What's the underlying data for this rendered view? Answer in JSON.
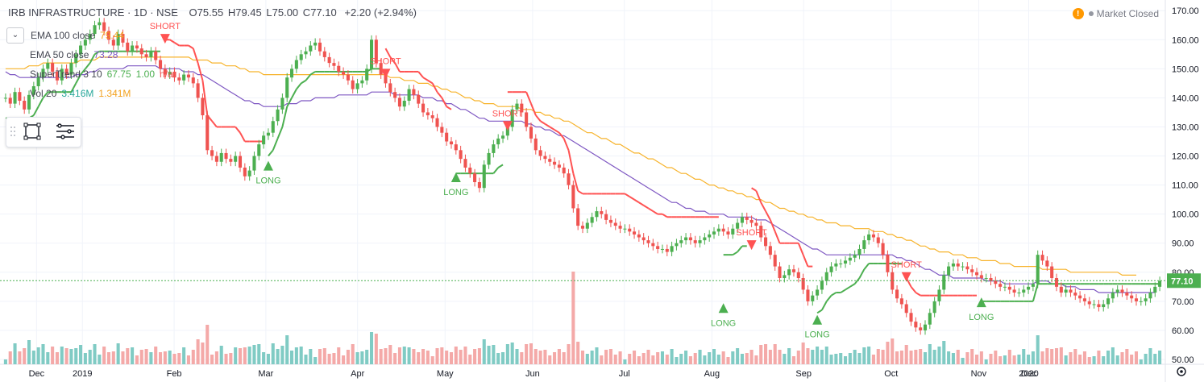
{
  "header": {
    "title": "IRB INFRASTRUCTURE · 1D · NSE",
    "open_label": "O",
    "open": "75.55",
    "high_label": "H",
    "high": "79.45",
    "low_label": "L",
    "low": "75.00",
    "close_label": "C",
    "close": "77.10",
    "change": "+2.20 (+2.94%)"
  },
  "status": {
    "warning_icon": "!",
    "text": "Market Closed"
  },
  "indicators": [
    {
      "label": "EMA 100 close",
      "value": "79.44",
      "color": "#f2a01d"
    },
    {
      "label": "EMA 50 close",
      "value": "73.28",
      "color": "#7e57c2"
    },
    {
      "label": "SuperTrend 3 10",
      "value": "67.75",
      "value2": "1.00",
      "value3": "n/a",
      "color": "#4caf50"
    },
    {
      "label": "Vol 20",
      "value": "3.416M",
      "value2": "1.341M",
      "color": "#26a69a"
    }
  ],
  "colors": {
    "up": "#4caf50",
    "down": "#ef5350",
    "ema100": "#f7b32b",
    "ema50": "#7e57c2",
    "st_long": "#4caf50",
    "st_short": "#ff5252",
    "vol_up": "#80cbc4",
    "vol_down": "#f4a9a8",
    "price_tag": "#4caf50"
  },
  "chart_data": {
    "type": "candlestick",
    "title": "IRB INFRASTRUCTURE · 1D · NSE",
    "ylim": [
      50,
      172
    ],
    "y_ticks": [
      "50.00",
      "60.00",
      "70.00",
      "80.00",
      "90.00",
      "100.00",
      "110.00",
      "120.00",
      "130.00",
      "140.00",
      "150.00",
      "160.00",
      "170.00"
    ],
    "x_ticks": [
      "Dec",
      "2019",
      "Feb",
      "Mar",
      "Apr",
      "May",
      "Jun",
      "Jul",
      "Aug",
      "Sep",
      "Oct",
      "Nov",
      "Dec",
      "2020"
    ],
    "last_price": "77.10",
    "closes": [
      140,
      138,
      142,
      139,
      136,
      141,
      144,
      147,
      150,
      152,
      149,
      146,
      150,
      148,
      152,
      155,
      158,
      160,
      162,
      165,
      166,
      163,
      160,
      158,
      162,
      159,
      156,
      158,
      157,
      155,
      154,
      156,
      153,
      150,
      148,
      149,
      147,
      146,
      148,
      147,
      145,
      140,
      134,
      122,
      120,
      118,
      121,
      119,
      118,
      120,
      116,
      113,
      115,
      120,
      124,
      127,
      128,
      132,
      136,
      140,
      147,
      150,
      153,
      155,
      156,
      158,
      159,
      156,
      154,
      152,
      151,
      149,
      148,
      146,
      143,
      145,
      146,
      150,
      160,
      152,
      148,
      145,
      142,
      140,
      137,
      139,
      143,
      141,
      138,
      135,
      134,
      133,
      130,
      128,
      125,
      124,
      122,
      119,
      116,
      114,
      111,
      109,
      117,
      121,
      124,
      126,
      127,
      130,
      136,
      138,
      135,
      130,
      126,
      122,
      120,
      119,
      118,
      117,
      116,
      114,
      110,
      102,
      96,
      95,
      97,
      99,
      101,
      100,
      98,
      97,
      96,
      95,
      95,
      94,
      93,
      92,
      91,
      90,
      89,
      88,
      88,
      87,
      89,
      90,
      91,
      92,
      91,
      90,
      91,
      92,
      93,
      94,
      95,
      94,
      93,
      95,
      97,
      99,
      98,
      97,
      96,
      92,
      89,
      86,
      82,
      78,
      79,
      81,
      80,
      78,
      74,
      70,
      72,
      74,
      77,
      80,
      82,
      83,
      83,
      84,
      85,
      86,
      88,
      91,
      93,
      92,
      90,
      86,
      80,
      74,
      71,
      69,
      66,
      63,
      61,
      60,
      62,
      66,
      70,
      74,
      79,
      82,
      83,
      82,
      82,
      81,
      80,
      79,
      78,
      78,
      77,
      76,
      75,
      75,
      74,
      73,
      73,
      74,
      75,
      76,
      86,
      84,
      82,
      78,
      75,
      73,
      74,
      73,
      72,
      71,
      70,
      69,
      69,
      68,
      69,
      71,
      73,
      74,
      73,
      72,
      71,
      70,
      70,
      71,
      73,
      75,
      77
    ],
    "ema100": [
      150,
      150,
      150,
      150,
      150,
      151,
      151,
      151,
      152,
      152,
      152,
      152,
      152,
      152,
      152,
      152,
      153,
      153,
      153,
      153,
      154,
      154,
      154,
      154,
      154,
      154,
      154,
      154,
      154,
      154,
      154,
      154,
      154,
      154,
      154,
      154,
      154,
      154,
      154,
      154,
      153,
      153,
      153,
      153,
      152,
      152,
      152,
      151,
      151,
      151,
      150,
      150,
      149,
      149,
      149,
      148,
      148,
      148,
      148,
      148,
      148,
      148,
      148,
      148,
      148,
      148,
      148,
      148,
      148,
      148,
      148,
      148,
      148,
      148,
      148,
      148,
      148,
      148,
      148,
      148,
      148,
      148,
      147,
      147,
      147,
      146,
      146,
      146,
      145,
      145,
      145,
      144,
      144,
      143,
      143,
      142,
      142,
      141,
      140,
      140,
      139,
      139,
      138,
      138,
      138,
      137,
      137,
      137,
      137,
      137,
      136,
      136,
      136,
      135,
      135,
      134,
      134,
      133,
      133,
      132,
      132,
      131,
      130,
      129,
      128,
      128,
      127,
      126,
      126,
      125,
      124,
      124,
      123,
      122,
      121,
      121,
      120,
      119,
      119,
      118,
      117,
      116,
      116,
      115,
      114,
      114,
      113,
      112,
      112,
      111,
      110,
      110,
      109,
      109,
      108,
      108,
      107,
      107,
      106,
      106,
      105,
      105,
      104,
      104,
      103,
      102,
      102,
      101,
      101,
      100,
      100,
      99,
      99,
      98,
      98,
      97,
      97,
      97,
      96,
      96,
      96,
      95,
      95,
      95,
      95,
      94,
      94,
      94,
      93,
      93,
      92,
      92,
      91,
      91,
      90,
      89,
      89,
      88,
      88,
      87,
      87,
      87,
      86,
      86,
      86,
      85,
      85,
      85,
      84,
      84,
      84,
      84,
      83,
      83,
      83,
      82,
      82,
      82,
      82,
      82,
      82,
      81,
      81,
      81,
      81,
      81,
      81,
      80,
      80,
      80,
      80,
      80,
      80,
      80,
      80,
      80,
      80,
      80,
      79,
      79,
      79,
      79
    ],
    "ema50": [
      149,
      148,
      148,
      147,
      147,
      147,
      147,
      147,
      147,
      147,
      147,
      147,
      147,
      147,
      147,
      148,
      148,
      148,
      149,
      149,
      150,
      150,
      150,
      150,
      150,
      150,
      151,
      151,
      151,
      151,
      151,
      151,
      151,
      150,
      150,
      150,
      150,
      150,
      149,
      149,
      149,
      148,
      148,
      147,
      146,
      145,
      144,
      143,
      142,
      141,
      140,
      139,
      139,
      138,
      138,
      137,
      137,
      137,
      137,
      137,
      138,
      138,
      138,
      139,
      139,
      139,
      140,
      140,
      140,
      140,
      140,
      141,
      141,
      141,
      141,
      141,
      141,
      141,
      142,
      142,
      142,
      142,
      142,
      141,
      141,
      141,
      141,
      141,
      141,
      140,
      140,
      140,
      139,
      139,
      138,
      138,
      137,
      136,
      136,
      135,
      134,
      133,
      133,
      132,
      132,
      132,
      132,
      132,
      132,
      132,
      132,
      131,
      131,
      130,
      130,
      129,
      129,
      128,
      127,
      127,
      126,
      125,
      124,
      123,
      122,
      121,
      120,
      119,
      118,
      117,
      116,
      115,
      114,
      113,
      112,
      111,
      110,
      109,
      108,
      107,
      106,
      105,
      104,
      104,
      103,
      102,
      102,
      101,
      101,
      101,
      100,
      100,
      100,
      100,
      99,
      99,
      99,
      99,
      99,
      99,
      98,
      98,
      98,
      97,
      96,
      95,
      94,
      93,
      92,
      91,
      90,
      89,
      88,
      88,
      87,
      86,
      86,
      86,
      86,
      86,
      86,
      86,
      86,
      86,
      86,
      86,
      86,
      86,
      86,
      86,
      85,
      85,
      84,
      84,
      83,
      82,
      81,
      81,
      80,
      79,
      79,
      79,
      78,
      78,
      78,
      78,
      78,
      78,
      78,
      77,
      77,
      77,
      77,
      76,
      76,
      76,
      76,
      76,
      76,
      76,
      77,
      77,
      77,
      76,
      76,
      76,
      75,
      75,
      75,
      74,
      74,
      74,
      74,
      73,
      73,
      73,
      73,
      73,
      73,
      73,
      73,
      73,
      73,
      73,
      73,
      73
    ],
    "signals": [
      {
        "type": "SHORT",
        "x_index": 34,
        "price": 162
      },
      {
        "type": "LONG",
        "x_index": 56,
        "price": 115
      },
      {
        "type": "SHORT",
        "x_index": 81,
        "price": 150
      },
      {
        "type": "LONG",
        "x_index": 96,
        "price": 111
      },
      {
        "type": "SHORT",
        "x_index": 107,
        "price": 132
      },
      {
        "type": "SHORT",
        "x_index": 159,
        "price": 91
      },
      {
        "type": "LONG",
        "x_index": 153,
        "price": 66
      },
      {
        "type": "LONG",
        "x_index": 173,
        "price": 62
      },
      {
        "type": "SHORT",
        "x_index": 192,
        "price": 80
      },
      {
        "type": "LONG",
        "x_index": 208,
        "price": 68
      }
    ]
  }
}
